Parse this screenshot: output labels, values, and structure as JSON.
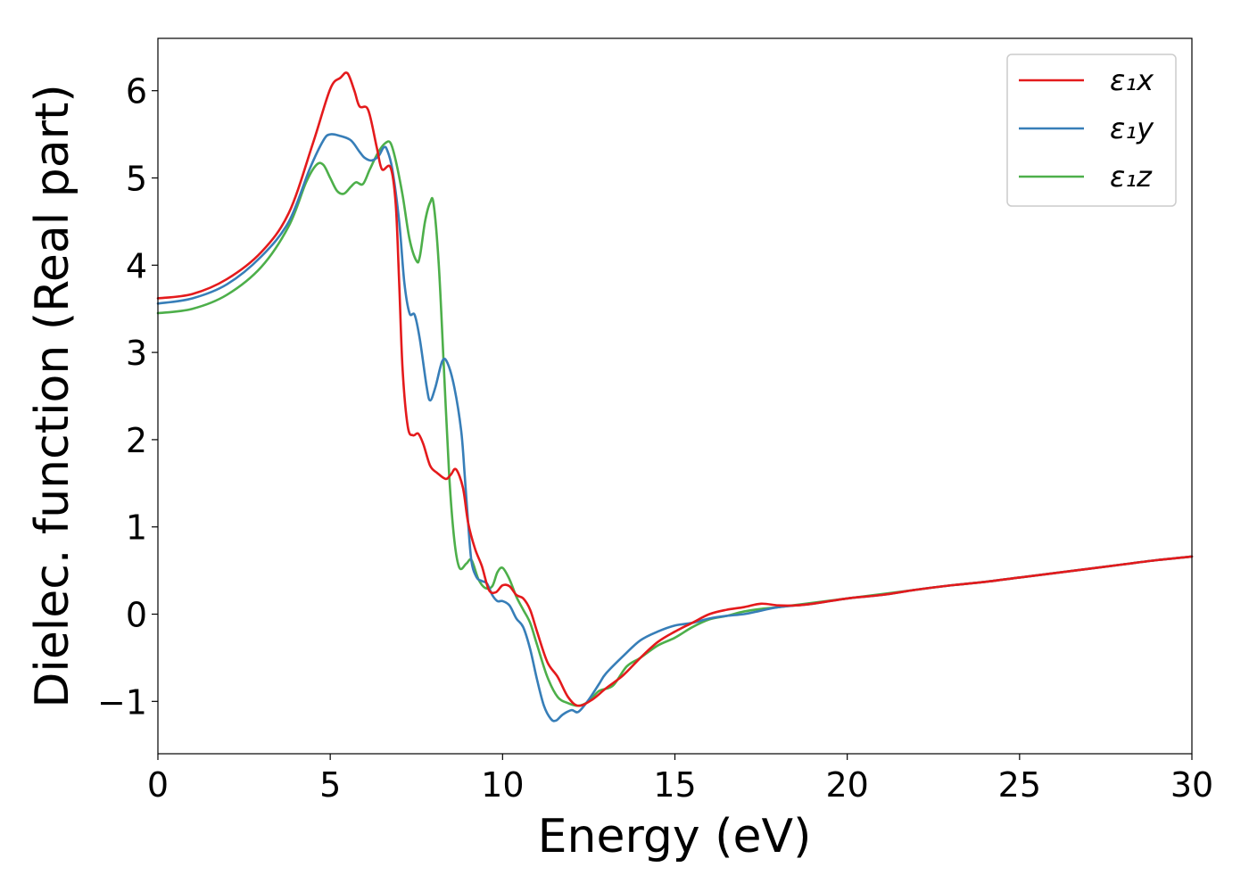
{
  "chart_data": {
    "type": "line",
    "xlabel": "Energy (eV)",
    "ylabel": "Dielec. function (Real part)",
    "xlim": [
      0,
      30
    ],
    "ylim": [
      -1.6,
      6.6
    ],
    "xticks": [
      0,
      5,
      10,
      15,
      20,
      25,
      30
    ],
    "xtick_labels": [
      "0",
      "5",
      "10",
      "15",
      "20",
      "25",
      "30"
    ],
    "yticks": [
      -1,
      0,
      1,
      2,
      3,
      4,
      5,
      6
    ],
    "ytick_labels": [
      "−1",
      "0",
      "1",
      "2",
      "3",
      "4",
      "5",
      "6"
    ],
    "grid": false,
    "legend": "top-right",
    "series": [
      {
        "name": "ε₁x",
        "color": "#e41a1c",
        "points": [
          [
            0,
            3.62
          ],
          [
            1,
            3.67
          ],
          [
            2,
            3.84
          ],
          [
            3,
            4.15
          ],
          [
            3.8,
            4.6
          ],
          [
            4.5,
            5.4
          ],
          [
            5,
            6.02
          ],
          [
            5.3,
            6.15
          ],
          [
            5.5,
            6.2
          ],
          [
            5.7,
            6.0
          ],
          [
            5.85,
            5.82
          ],
          [
            6.1,
            5.78
          ],
          [
            6.35,
            5.35
          ],
          [
            6.5,
            5.1
          ],
          [
            6.75,
            5.12
          ],
          [
            6.9,
            4.7
          ],
          [
            7.0,
            3.8
          ],
          [
            7.1,
            2.8
          ],
          [
            7.25,
            2.15
          ],
          [
            7.4,
            2.05
          ],
          [
            7.55,
            2.07
          ],
          [
            7.7,
            1.95
          ],
          [
            7.9,
            1.7
          ],
          [
            8.1,
            1.62
          ],
          [
            8.35,
            1.55
          ],
          [
            8.5,
            1.6
          ],
          [
            8.65,
            1.66
          ],
          [
            8.85,
            1.45
          ],
          [
            9.0,
            1.05
          ],
          [
            9.2,
            0.75
          ],
          [
            9.4,
            0.55
          ],
          [
            9.6,
            0.28
          ],
          [
            9.8,
            0.25
          ],
          [
            10.0,
            0.33
          ],
          [
            10.2,
            0.32
          ],
          [
            10.4,
            0.22
          ],
          [
            10.6,
            0.18
          ],
          [
            10.8,
            0.05
          ],
          [
            11.0,
            -0.2
          ],
          [
            11.3,
            -0.55
          ],
          [
            11.6,
            -0.72
          ],
          [
            11.9,
            -0.95
          ],
          [
            12.2,
            -1.05
          ],
          [
            12.6,
            -0.98
          ],
          [
            13.0,
            -0.85
          ],
          [
            13.5,
            -0.7
          ],
          [
            14.0,
            -0.5
          ],
          [
            14.5,
            -0.32
          ],
          [
            15.0,
            -0.2
          ],
          [
            15.5,
            -0.1
          ],
          [
            16.0,
            0.0
          ],
          [
            16.5,
            0.05
          ],
          [
            17.0,
            0.08
          ],
          [
            17.5,
            0.12
          ],
          [
            18.0,
            0.1
          ],
          [
            18.5,
            0.1
          ],
          [
            19.0,
            0.12
          ],
          [
            20.0,
            0.18
          ],
          [
            21.0,
            0.22
          ],
          [
            22.0,
            0.28
          ],
          [
            23.0,
            0.33
          ],
          [
            24.0,
            0.37
          ],
          [
            25.0,
            0.42
          ],
          [
            26.0,
            0.47
          ],
          [
            27.0,
            0.52
          ],
          [
            28.0,
            0.57
          ],
          [
            29.0,
            0.62
          ],
          [
            30.0,
            0.66
          ]
        ]
      },
      {
        "name": "ε₁y",
        "color": "#377eb8",
        "points": [
          [
            0,
            3.56
          ],
          [
            1,
            3.62
          ],
          [
            2,
            3.78
          ],
          [
            3,
            4.1
          ],
          [
            3.8,
            4.5
          ],
          [
            4.4,
            5.1
          ],
          [
            4.8,
            5.43
          ],
          [
            5.0,
            5.5
          ],
          [
            5.3,
            5.48
          ],
          [
            5.6,
            5.43
          ],
          [
            5.85,
            5.3
          ],
          [
            6.0,
            5.23
          ],
          [
            6.2,
            5.2
          ],
          [
            6.4,
            5.25
          ],
          [
            6.55,
            5.35
          ],
          [
            6.65,
            5.32
          ],
          [
            6.8,
            5.1
          ],
          [
            7.0,
            4.5
          ],
          [
            7.15,
            3.8
          ],
          [
            7.3,
            3.45
          ],
          [
            7.45,
            3.43
          ],
          [
            7.6,
            3.15
          ],
          [
            7.8,
            2.6
          ],
          [
            7.9,
            2.45
          ],
          [
            8.05,
            2.6
          ],
          [
            8.25,
            2.9
          ],
          [
            8.4,
            2.88
          ],
          [
            8.6,
            2.6
          ],
          [
            8.8,
            2.1
          ],
          [
            8.9,
            1.6
          ],
          [
            9.0,
            1.05
          ],
          [
            9.1,
            0.6
          ],
          [
            9.25,
            0.42
          ],
          [
            9.4,
            0.38
          ],
          [
            9.55,
            0.35
          ],
          [
            9.7,
            0.22
          ],
          [
            9.85,
            0.15
          ],
          [
            10.0,
            0.15
          ],
          [
            10.2,
            0.1
          ],
          [
            10.4,
            -0.05
          ],
          [
            10.6,
            -0.15
          ],
          [
            10.8,
            -0.4
          ],
          [
            11.0,
            -0.75
          ],
          [
            11.2,
            -1.05
          ],
          [
            11.4,
            -1.2
          ],
          [
            11.55,
            -1.22
          ],
          [
            11.75,
            -1.15
          ],
          [
            12.0,
            -1.1
          ],
          [
            12.2,
            -1.12
          ],
          [
            12.5,
            -0.98
          ],
          [
            12.8,
            -0.8
          ],
          [
            13.0,
            -0.68
          ],
          [
            13.5,
            -0.48
          ],
          [
            14.0,
            -0.3
          ],
          [
            14.5,
            -0.2
          ],
          [
            15.0,
            -0.13
          ],
          [
            15.5,
            -0.1
          ],
          [
            16.0,
            -0.05
          ],
          [
            16.5,
            -0.02
          ],
          [
            17.0,
            0.0
          ],
          [
            17.5,
            0.04
          ],
          [
            18.0,
            0.08
          ],
          [
            19.0,
            0.12
          ],
          [
            20.0,
            0.18
          ],
          [
            21.0,
            0.22
          ],
          [
            22.0,
            0.28
          ],
          [
            23.0,
            0.33
          ],
          [
            24.0,
            0.37
          ],
          [
            25.0,
            0.42
          ],
          [
            26.0,
            0.47
          ],
          [
            27.0,
            0.52
          ],
          [
            28.0,
            0.57
          ],
          [
            29.0,
            0.62
          ],
          [
            30.0,
            0.66
          ]
        ]
      },
      {
        "name": "ε₁z",
        "color": "#4daf4a",
        "points": [
          [
            0,
            3.45
          ],
          [
            1,
            3.5
          ],
          [
            2,
            3.66
          ],
          [
            3,
            3.98
          ],
          [
            3.8,
            4.45
          ],
          [
            4.3,
            4.95
          ],
          [
            4.6,
            5.15
          ],
          [
            4.8,
            5.15
          ],
          [
            5.0,
            5.0
          ],
          [
            5.2,
            4.85
          ],
          [
            5.4,
            4.82
          ],
          [
            5.6,
            4.9
          ],
          [
            5.75,
            4.95
          ],
          [
            5.95,
            4.93
          ],
          [
            6.15,
            5.1
          ],
          [
            6.4,
            5.3
          ],
          [
            6.6,
            5.4
          ],
          [
            6.75,
            5.4
          ],
          [
            6.9,
            5.2
          ],
          [
            7.1,
            4.8
          ],
          [
            7.3,
            4.3
          ],
          [
            7.5,
            4.05
          ],
          [
            7.6,
            4.1
          ],
          [
            7.75,
            4.5
          ],
          [
            7.9,
            4.72
          ],
          [
            8.0,
            4.7
          ],
          [
            8.15,
            4.0
          ],
          [
            8.3,
            2.8
          ],
          [
            8.45,
            1.6
          ],
          [
            8.6,
            0.85
          ],
          [
            8.75,
            0.53
          ],
          [
            8.95,
            0.58
          ],
          [
            9.1,
            0.62
          ],
          [
            9.3,
            0.4
          ],
          [
            9.5,
            0.3
          ],
          [
            9.7,
            0.32
          ],
          [
            9.85,
            0.48
          ],
          [
            10.0,
            0.53
          ],
          [
            10.2,
            0.4
          ],
          [
            10.4,
            0.2
          ],
          [
            10.6,
            0.05
          ],
          [
            10.8,
            -0.1
          ],
          [
            11.0,
            -0.35
          ],
          [
            11.3,
            -0.72
          ],
          [
            11.6,
            -0.95
          ],
          [
            11.9,
            -1.02
          ],
          [
            12.2,
            -1.05
          ],
          [
            12.5,
            -1.0
          ],
          [
            12.8,
            -0.88
          ],
          [
            13.2,
            -0.82
          ],
          [
            13.6,
            -0.6
          ],
          [
            14.0,
            -0.5
          ],
          [
            14.5,
            -0.36
          ],
          [
            15.0,
            -0.27
          ],
          [
            15.5,
            -0.15
          ],
          [
            16.0,
            -0.06
          ],
          [
            16.5,
            -0.02
          ],
          [
            17.0,
            0.03
          ],
          [
            17.5,
            0.06
          ],
          [
            18.0,
            0.08
          ],
          [
            19.0,
            0.13
          ],
          [
            20.0,
            0.18
          ],
          [
            21.0,
            0.23
          ],
          [
            22.0,
            0.28
          ],
          [
            23.0,
            0.33
          ],
          [
            24.0,
            0.37
          ],
          [
            25.0,
            0.42
          ],
          [
            26.0,
            0.47
          ],
          [
            27.0,
            0.52
          ],
          [
            28.0,
            0.57
          ],
          [
            29.0,
            0.62
          ],
          [
            30.0,
            0.66
          ]
        ]
      }
    ]
  }
}
